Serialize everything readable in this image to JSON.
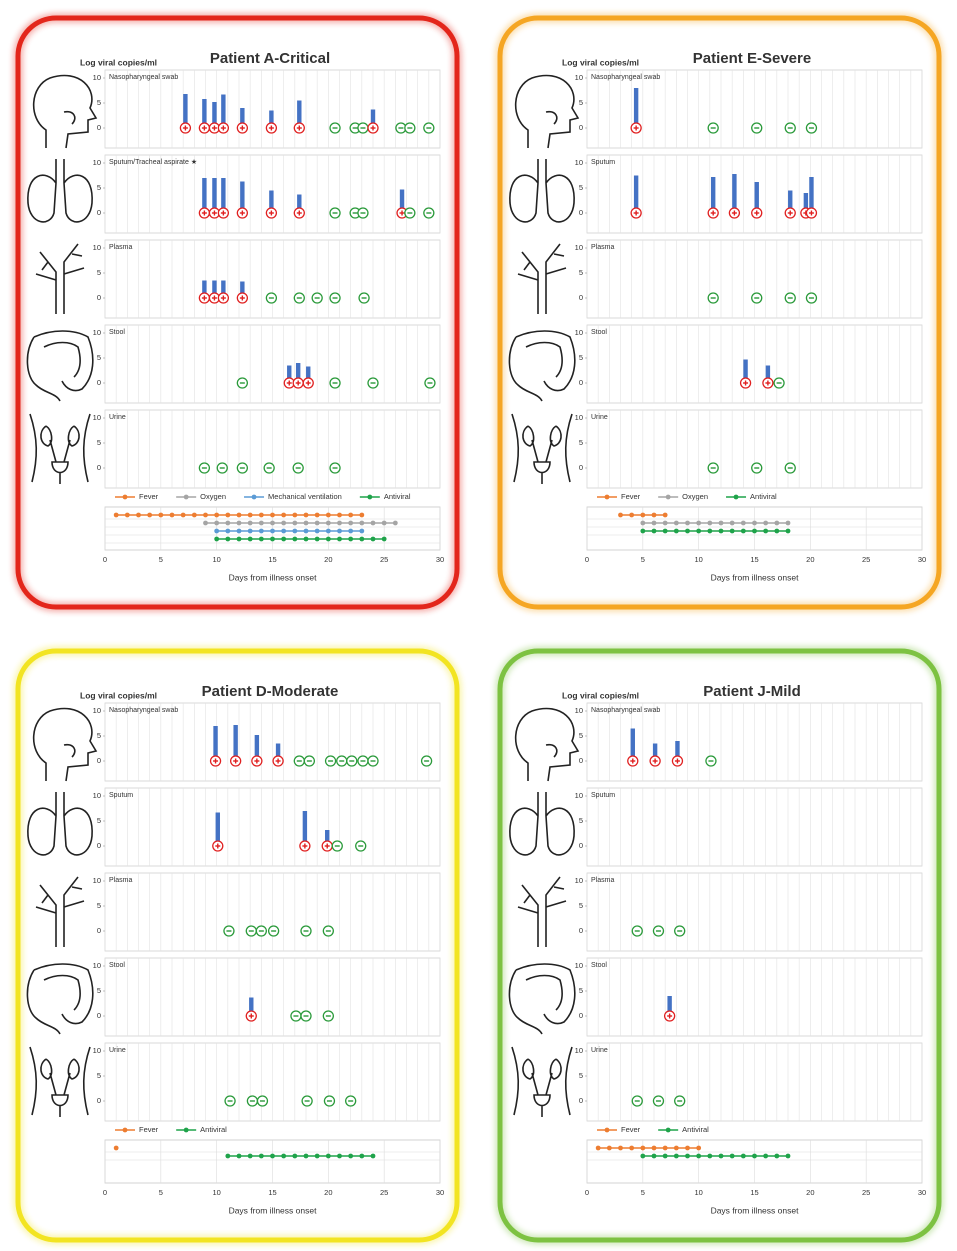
{
  "chart_data": [
    {
      "type": "bar",
      "title": "Patient A-Critical",
      "border_color": "#e3261b",
      "bar_color": "#4472c4",
      "positive_color": "#e02020",
      "negative_color": "#2a9a3a",
      "ylabel": "Log viral copies/ml",
      "xlabel": "Days from illness onset",
      "xlim": [
        0,
        30
      ],
      "xticks": [
        0,
        5,
        10,
        15,
        20,
        25,
        30
      ],
      "ylim": [
        0,
        10
      ],
      "yticks": [
        0,
        5,
        10
      ],
      "series": [
        {
          "name": "Nasopharyngeal swab",
          "x": [
            7.2,
            8.9,
            9.8,
            10.6,
            12.3,
            14.9,
            17.4,
            20.6,
            22.4,
            23.1,
            24,
            26.5,
            27.3,
            29
          ],
          "values": [
            6.8,
            5.8,
            5.2,
            6.7,
            4,
            3.5,
            5.5,
            0,
            0,
            0,
            3.7,
            0,
            0,
            0
          ]
        },
        {
          "name": "Sputum/Tracheal aspirate ★",
          "x": [
            8.9,
            9.8,
            10.6,
            12.3,
            14.9,
            17.4,
            20.6,
            22.4,
            23.1,
            26.6,
            27.3,
            29
          ],
          "values": [
            7,
            7,
            7,
            6.3,
            4.5,
            3.7,
            0,
            0,
            0,
            4.7,
            0,
            0
          ]
        },
        {
          "name": "Plasma",
          "x": [
            8.9,
            9.8,
            10.6,
            12.3,
            14.9,
            17.4,
            19,
            20.6,
            23.2
          ],
          "values": [
            3.5,
            3.5,
            3.5,
            3.3,
            0,
            0,
            0,
            0,
            0
          ]
        },
        {
          "name": "Stool",
          "x": [
            12.3,
            16.5,
            17.3,
            18.2,
            20.6,
            24,
            29.1
          ],
          "values": [
            0,
            3.5,
            4,
            3.3,
            0,
            0,
            0
          ]
        },
        {
          "name": "Urine",
          "x": [
            8.9,
            10.5,
            12.3,
            14.7,
            17.3,
            20.6
          ],
          "values": [
            0,
            0,
            0,
            0,
            0,
            0
          ]
        }
      ],
      "timeline": {
        "type": "line",
        "series": [
          {
            "name": "Fever",
            "color": "#ed7d31",
            "x": [
              1,
              2,
              3,
              4,
              5,
              6,
              7,
              8,
              9,
              10,
              11,
              12,
              13,
              14,
              15,
              16,
              17,
              18,
              19,
              20,
              21,
              22,
              23
            ]
          },
          {
            "name": "Oxygen",
            "color": "#a5a5a5",
            "x": [
              9,
              10,
              11,
              12,
              13,
              14,
              15,
              16,
              17,
              18,
              19,
              20,
              21,
              22,
              23,
              24,
              25,
              26
            ]
          },
          {
            "name": "Mechanical ventilation",
            "color": "#5b9bd5",
            "x": [
              10,
              11,
              12,
              13,
              14,
              15,
              16,
              17,
              18,
              19,
              20,
              21,
              22,
              23
            ]
          },
          {
            "name": "Antiviral",
            "color": "#1fa34a",
            "x": [
              10,
              11,
              12,
              13,
              14,
              15,
              16,
              17,
              18,
              19,
              20,
              21,
              22,
              23,
              24,
              25
            ]
          }
        ]
      }
    },
    {
      "type": "bar",
      "title": "Patient E-Severe",
      "border_color": "#f5a623",
      "bar_color": "#4472c4",
      "positive_color": "#e02020",
      "negative_color": "#2a9a3a",
      "ylabel": "Log viral copies/ml",
      "xlabel": "Days from illness onset",
      "xlim": [
        0,
        30
      ],
      "xticks": [
        0,
        5,
        10,
        15,
        20,
        25,
        30
      ],
      "ylim": [
        0,
        10
      ],
      "yticks": [
        0,
        5,
        10
      ],
      "series": [
        {
          "name": "Nasopharyngeal swab",
          "x": [
            4.4,
            11.3,
            15.2,
            18.2,
            20.1
          ],
          "values": [
            8,
            0,
            0,
            0,
            0
          ]
        },
        {
          "name": "Sputum",
          "x": [
            4.4,
            11.3,
            13.2,
            15.2,
            18.2,
            19.6,
            20.1
          ],
          "values": [
            7.5,
            7.2,
            7.8,
            6.2,
            4.5,
            4,
            7.2
          ]
        },
        {
          "name": "Plasma",
          "x": [
            11.3,
            15.2,
            18.2,
            20.1
          ],
          "values": [
            0,
            0,
            0,
            0
          ]
        },
        {
          "name": "Stool",
          "x": [
            14.2,
            16.2,
            17.2
          ],
          "values": [
            4.7,
            3.5,
            0
          ]
        },
        {
          "name": "Urine",
          "x": [
            11.3,
            15.2,
            18.2
          ],
          "values": [
            0,
            0,
            0
          ]
        }
      ],
      "timeline": {
        "type": "line",
        "series": [
          {
            "name": "Fever",
            "color": "#ed7d31",
            "x": [
              3,
              4,
              5,
              6,
              7
            ]
          },
          {
            "name": "Oxygen",
            "color": "#a5a5a5",
            "x": [
              5,
              6,
              7,
              8,
              9,
              10,
              11,
              12,
              13,
              14,
              15,
              16,
              17,
              18
            ]
          },
          {
            "name": "Antiviral",
            "color": "#1fa34a",
            "x": [
              5,
              6,
              7,
              8,
              9,
              10,
              11,
              12,
              13,
              14,
              15,
              16,
              17,
              18
            ]
          }
        ]
      }
    },
    {
      "type": "bar",
      "title": "Patient D-Moderate",
      "border_color": "#f2e422",
      "bar_color": "#4472c4",
      "positive_color": "#e02020",
      "negative_color": "#2a9a3a",
      "ylabel": "Log viral copies/ml",
      "xlabel": "Days from illness onset",
      "xlim": [
        0,
        30
      ],
      "xticks": [
        0,
        5,
        10,
        15,
        20,
        25,
        30
      ],
      "ylim": [
        0,
        10
      ],
      "yticks": [
        0,
        5,
        10
      ],
      "series": [
        {
          "name": "Nasopharyngeal swab",
          "x": [
            9.9,
            11.7,
            13.6,
            15.5,
            17.4,
            18.3,
            20.2,
            21.2,
            22.1,
            23.1,
            24,
            28.8
          ],
          "values": [
            7,
            7.2,
            5.2,
            3.5,
            0,
            0,
            0,
            0,
            0,
            0,
            0,
            0
          ]
        },
        {
          "name": "Sputum",
          "x": [
            10.1,
            17.9,
            19.9,
            20.8,
            22.9
          ],
          "values": [
            6.7,
            7,
            3.2,
            0,
            0
          ]
        },
        {
          "name": "Plasma",
          "x": [
            11.1,
            13.1,
            14,
            15.1,
            18,
            20
          ],
          "values": [
            0,
            0,
            0,
            0,
            0,
            0
          ]
        },
        {
          "name": "Stool",
          "x": [
            13.1,
            17.1,
            18,
            20
          ],
          "values": [
            3.7,
            0,
            0,
            0
          ]
        },
        {
          "name": "Urine",
          "x": [
            11.2,
            13.2,
            14.1,
            18.1,
            20.1,
            22
          ],
          "values": [
            0,
            0,
            0,
            0,
            0,
            0
          ]
        }
      ],
      "timeline": {
        "type": "line",
        "series": [
          {
            "name": "Fever",
            "color": "#ed7d31",
            "x": [
              1
            ]
          },
          {
            "name": "Antiviral",
            "color": "#1fa34a",
            "x": [
              11,
              12,
              13,
              14,
              15,
              16,
              17,
              18,
              19,
              20,
              21,
              22,
              23,
              24
            ]
          }
        ]
      }
    },
    {
      "type": "bar",
      "title": "Patient J-Mild",
      "border_color": "#7dc242",
      "bar_color": "#4472c4",
      "positive_color": "#e02020",
      "negative_color": "#2a9a3a",
      "ylabel": "Log viral copies/ml",
      "xlabel": "Days from illness onset",
      "xlim": [
        0,
        30
      ],
      "xticks": [
        0,
        5,
        10,
        15,
        20,
        25,
        30
      ],
      "ylim": [
        0,
        10
      ],
      "yticks": [
        0,
        5,
        10
      ],
      "series": [
        {
          "name": "Nasopharyngeal swab",
          "x": [
            4.1,
            6.1,
            8.1,
            11.1
          ],
          "values": [
            6.5,
            3.5,
            4,
            0
          ]
        },
        {
          "name": "Sputum",
          "x": [],
          "values": []
        },
        {
          "name": "Plasma",
          "x": [
            4.5,
            6.4,
            8.3
          ],
          "values": [
            0,
            0,
            0
          ]
        },
        {
          "name": "Stool",
          "x": [
            7.4
          ],
          "values": [
            4
          ]
        },
        {
          "name": "Urine",
          "x": [
            4.5,
            6.4,
            8.3
          ],
          "values": [
            0,
            0,
            0
          ]
        }
      ],
      "timeline": {
        "type": "line",
        "series": [
          {
            "name": "Fever",
            "color": "#ed7d31",
            "x": [
              1,
              2,
              3,
              4,
              5,
              6,
              7,
              8,
              9,
              10
            ]
          },
          {
            "name": "Antiviral",
            "color": "#1fa34a",
            "x": [
              5,
              6,
              7,
              8,
              9,
              10,
              11,
              12,
              13,
              14,
              15,
              16,
              17,
              18
            ]
          }
        ]
      }
    }
  ]
}
